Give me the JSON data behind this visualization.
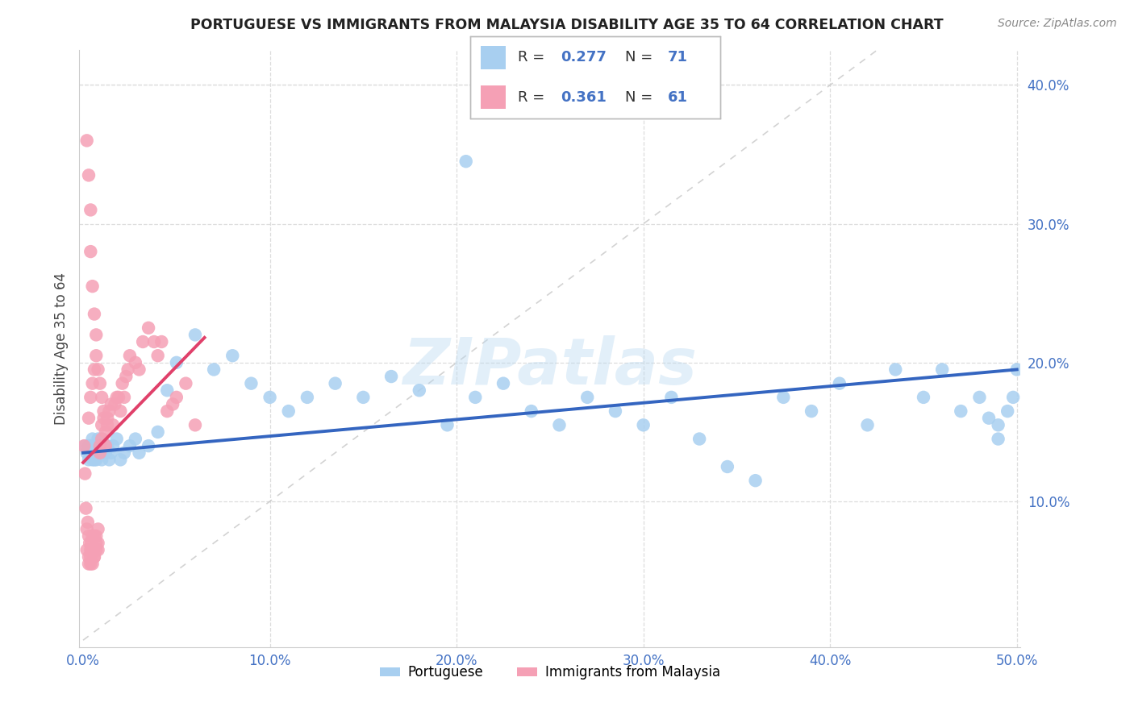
{
  "title": "PORTUGUESE VS IMMIGRANTS FROM MALAYSIA DISABILITY AGE 35 TO 64 CORRELATION CHART",
  "source": "Source: ZipAtlas.com",
  "ylabel": "Disability Age 35 to 64",
  "xlim": [
    -0.002,
    0.502
  ],
  "ylim": [
    -0.005,
    0.425
  ],
  "xticks": [
    0.0,
    0.1,
    0.2,
    0.3,
    0.4,
    0.5
  ],
  "yticks": [
    0.1,
    0.2,
    0.3,
    0.4
  ],
  "xticklabels": [
    "0.0%",
    "10.0%",
    "20.0%",
    "30.0%",
    "40.0%",
    "50.0%"
  ],
  "yticklabels": [
    "10.0%",
    "20.0%",
    "30.0%",
    "40.0%"
  ],
  "color_portuguese": "#a8cff0",
  "color_malaysia": "#f5a0b5",
  "color_line_portuguese": "#3465c0",
  "color_line_malaysia": "#e0406a",
  "color_diagonal": "#c8c8c8",
  "watermark": "ZIPatlas",
  "port_line_x": [
    0.0,
    0.5
  ],
  "port_line_y": [
    0.135,
    0.195
  ],
  "malay_line_x": [
    0.0,
    0.065
  ],
  "malay_line_y": [
    0.128,
    0.218
  ],
  "portuguese_x": [
    0.001,
    0.002,
    0.003,
    0.003,
    0.004,
    0.004,
    0.005,
    0.005,
    0.006,
    0.006,
    0.007,
    0.007,
    0.008,
    0.008,
    0.009,
    0.01,
    0.01,
    0.011,
    0.012,
    0.013,
    0.014,
    0.015,
    0.016,
    0.018,
    0.02,
    0.022,
    0.025,
    0.028,
    0.03,
    0.035,
    0.04,
    0.045,
    0.05,
    0.06,
    0.07,
    0.08,
    0.09,
    0.1,
    0.11,
    0.12,
    0.135,
    0.15,
    0.165,
    0.18,
    0.195,
    0.21,
    0.225,
    0.24,
    0.255,
    0.27,
    0.285,
    0.3,
    0.315,
    0.33,
    0.345,
    0.36,
    0.375,
    0.39,
    0.405,
    0.42,
    0.435,
    0.45,
    0.46,
    0.47,
    0.48,
    0.49,
    0.495,
    0.498,
    0.5,
    0.49,
    0.485
  ],
  "portuguese_y": [
    0.14,
    0.135,
    0.13,
    0.14,
    0.135,
    0.14,
    0.13,
    0.145,
    0.13,
    0.14,
    0.135,
    0.13,
    0.145,
    0.135,
    0.14,
    0.13,
    0.145,
    0.14,
    0.135,
    0.14,
    0.13,
    0.135,
    0.14,
    0.145,
    0.13,
    0.135,
    0.14,
    0.145,
    0.135,
    0.14,
    0.15,
    0.18,
    0.2,
    0.22,
    0.195,
    0.205,
    0.185,
    0.175,
    0.165,
    0.175,
    0.185,
    0.175,
    0.19,
    0.18,
    0.155,
    0.175,
    0.185,
    0.165,
    0.155,
    0.175,
    0.165,
    0.155,
    0.175,
    0.145,
    0.125,
    0.115,
    0.175,
    0.165,
    0.185,
    0.155,
    0.195,
    0.175,
    0.195,
    0.165,
    0.175,
    0.145,
    0.165,
    0.175,
    0.195,
    0.155,
    0.16
  ],
  "malaysia_x": [
    0.0005,
    0.001,
    0.0015,
    0.002,
    0.002,
    0.0025,
    0.003,
    0.003,
    0.003,
    0.0035,
    0.004,
    0.004,
    0.004,
    0.0045,
    0.005,
    0.005,
    0.005,
    0.0055,
    0.006,
    0.006,
    0.006,
    0.007,
    0.007,
    0.007,
    0.008,
    0.008,
    0.008,
    0.009,
    0.009,
    0.01,
    0.01,
    0.011,
    0.011,
    0.012,
    0.012,
    0.013,
    0.013,
    0.014,
    0.015,
    0.016,
    0.017,
    0.018,
    0.019,
    0.02,
    0.021,
    0.022,
    0.023,
    0.024,
    0.025,
    0.028,
    0.03,
    0.032,
    0.035,
    0.038,
    0.04,
    0.042,
    0.045,
    0.048,
    0.05,
    0.055,
    0.06
  ],
  "malaysia_y": [
    0.14,
    0.12,
    0.095,
    0.08,
    0.065,
    0.085,
    0.06,
    0.075,
    0.055,
    0.07,
    0.055,
    0.06,
    0.065,
    0.07,
    0.055,
    0.065,
    0.075,
    0.065,
    0.06,
    0.075,
    0.06,
    0.065,
    0.07,
    0.075,
    0.065,
    0.07,
    0.08,
    0.14,
    0.135,
    0.145,
    0.155,
    0.16,
    0.165,
    0.14,
    0.15,
    0.155,
    0.16,
    0.165,
    0.17,
    0.155,
    0.17,
    0.175,
    0.175,
    0.165,
    0.185,
    0.175,
    0.19,
    0.195,
    0.205,
    0.2,
    0.195,
    0.215,
    0.225,
    0.215,
    0.205,
    0.215,
    0.165,
    0.17,
    0.175,
    0.185,
    0.155
  ],
  "malaysia_outliers_x": [
    0.002,
    0.003,
    0.004,
    0.004,
    0.005,
    0.006,
    0.007,
    0.003,
    0.004,
    0.005,
    0.006,
    0.007,
    0.008,
    0.009,
    0.01
  ],
  "malaysia_outliers_y": [
    0.36,
    0.335,
    0.31,
    0.28,
    0.255,
    0.235,
    0.22,
    0.16,
    0.175,
    0.185,
    0.195,
    0.205,
    0.195,
    0.185,
    0.175
  ]
}
